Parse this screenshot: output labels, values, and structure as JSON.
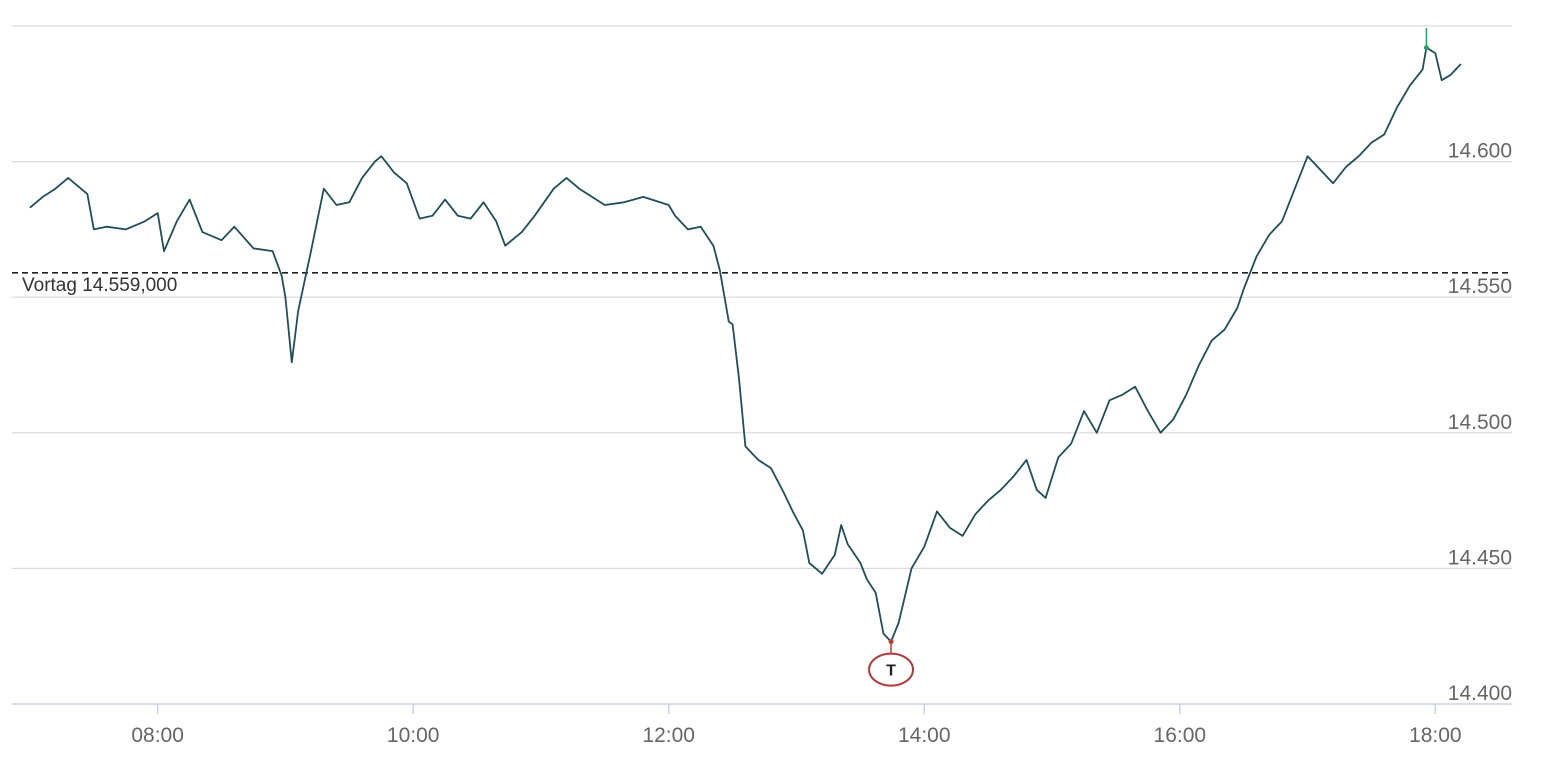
{
  "chart_data": {
    "type": "line",
    "title": "",
    "xlabel": "",
    "ylabel": "",
    "x_ticks": [
      "08:00",
      "10:00",
      "12:00",
      "14:00",
      "16:00",
      "18:00"
    ],
    "y_ticks": [
      "14.400",
      "14.450",
      "14.500",
      "14.550",
      "14.600"
    ],
    "ylim": [
      14.4,
      14.65
    ],
    "x_range_hours": [
      6.86,
      18.6
    ],
    "grid": true,
    "previous_close": {
      "label": "Vortag 14.559,000",
      "value": 14.559
    },
    "low_marker": {
      "label": "T",
      "time": 13.74,
      "value": 14.423
    },
    "high_marker": {
      "time": 17.93,
      "value": 14.642
    },
    "series": [
      {
        "color": "#1f4e5a",
        "points": [
          [
            7.0,
            14.583
          ],
          [
            7.1,
            14.587
          ],
          [
            7.2,
            14.59
          ],
          [
            7.3,
            14.594
          ],
          [
            7.45,
            14.588
          ],
          [
            7.5,
            14.575
          ],
          [
            7.6,
            14.576
          ],
          [
            7.75,
            14.575
          ],
          [
            7.9,
            14.578
          ],
          [
            8.0,
            14.581
          ],
          [
            8.05,
            14.567
          ],
          [
            8.15,
            14.578
          ],
          [
            8.25,
            14.586
          ],
          [
            8.35,
            14.574
          ],
          [
            8.5,
            14.571
          ],
          [
            8.6,
            14.576
          ],
          [
            8.75,
            14.568
          ],
          [
            8.9,
            14.567
          ],
          [
            8.97,
            14.558
          ],
          [
            9.0,
            14.55
          ],
          [
            9.05,
            14.526
          ],
          [
            9.1,
            14.545
          ],
          [
            9.2,
            14.567
          ],
          [
            9.3,
            14.59
          ],
          [
            9.4,
            14.584
          ],
          [
            9.5,
            14.585
          ],
          [
            9.6,
            14.594
          ],
          [
            9.7,
            14.6
          ],
          [
            9.75,
            14.602
          ],
          [
            9.85,
            14.596
          ],
          [
            9.95,
            14.592
          ],
          [
            10.05,
            14.579
          ],
          [
            10.15,
            14.58
          ],
          [
            10.25,
            14.586
          ],
          [
            10.35,
            14.58
          ],
          [
            10.45,
            14.579
          ],
          [
            10.55,
            14.585
          ],
          [
            10.65,
            14.578
          ],
          [
            10.72,
            14.569
          ],
          [
            10.85,
            14.574
          ],
          [
            10.95,
            14.58
          ],
          [
            11.1,
            14.59
          ],
          [
            11.2,
            14.594
          ],
          [
            11.3,
            14.59
          ],
          [
            11.5,
            14.584
          ],
          [
            11.65,
            14.585
          ],
          [
            11.8,
            14.587
          ],
          [
            12.0,
            14.584
          ],
          [
            12.05,
            14.58
          ],
          [
            12.15,
            14.575
          ],
          [
            12.25,
            14.576
          ],
          [
            12.35,
            14.569
          ],
          [
            12.4,
            14.56
          ],
          [
            12.47,
            14.541
          ],
          [
            12.5,
            14.54
          ],
          [
            12.55,
            14.52
          ],
          [
            12.6,
            14.495
          ],
          [
            12.7,
            14.49
          ],
          [
            12.8,
            14.487
          ],
          [
            12.9,
            14.478
          ],
          [
            12.97,
            14.471
          ],
          [
            13.05,
            14.464
          ],
          [
            13.1,
            14.452
          ],
          [
            13.2,
            14.448
          ],
          [
            13.3,
            14.455
          ],
          [
            13.35,
            14.466
          ],
          [
            13.4,
            14.459
          ],
          [
            13.5,
            14.452
          ],
          [
            13.55,
            14.446
          ],
          [
            13.62,
            14.441
          ],
          [
            13.68,
            14.426
          ],
          [
            13.74,
            14.423
          ],
          [
            13.8,
            14.43
          ],
          [
            13.9,
            14.45
          ],
          [
            14.0,
            14.458
          ],
          [
            14.1,
            14.471
          ],
          [
            14.2,
            14.465
          ],
          [
            14.3,
            14.462
          ],
          [
            14.4,
            14.47
          ],
          [
            14.5,
            14.475
          ],
          [
            14.6,
            14.479
          ],
          [
            14.7,
            14.484
          ],
          [
            14.8,
            14.49
          ],
          [
            14.88,
            14.479
          ],
          [
            14.95,
            14.476
          ],
          [
            15.05,
            14.491
          ],
          [
            15.15,
            14.496
          ],
          [
            15.25,
            14.508
          ],
          [
            15.35,
            14.5
          ],
          [
            15.45,
            14.512
          ],
          [
            15.55,
            14.514
          ],
          [
            15.65,
            14.517
          ],
          [
            15.75,
            14.508
          ],
          [
            15.85,
            14.5
          ],
          [
            15.95,
            14.505
          ],
          [
            16.05,
            14.514
          ],
          [
            16.15,
            14.525
          ],
          [
            16.25,
            14.534
          ],
          [
            16.35,
            14.538
          ],
          [
            16.45,
            14.546
          ],
          [
            16.5,
            14.553
          ],
          [
            16.6,
            14.565
          ],
          [
            16.7,
            14.573
          ],
          [
            16.8,
            14.578
          ],
          [
            16.9,
            14.59
          ],
          [
            17.0,
            14.602
          ],
          [
            17.1,
            14.597
          ],
          [
            17.2,
            14.592
          ],
          [
            17.3,
            14.598
          ],
          [
            17.4,
            14.602
          ],
          [
            17.5,
            14.607
          ],
          [
            17.6,
            14.61
          ],
          [
            17.7,
            14.62
          ],
          [
            17.8,
            14.628
          ],
          [
            17.9,
            14.634
          ],
          [
            17.93,
            14.642
          ],
          [
            18.0,
            14.64
          ],
          [
            18.05,
            14.63
          ],
          [
            18.12,
            14.632
          ],
          [
            18.2,
            14.636
          ]
        ]
      }
    ]
  }
}
